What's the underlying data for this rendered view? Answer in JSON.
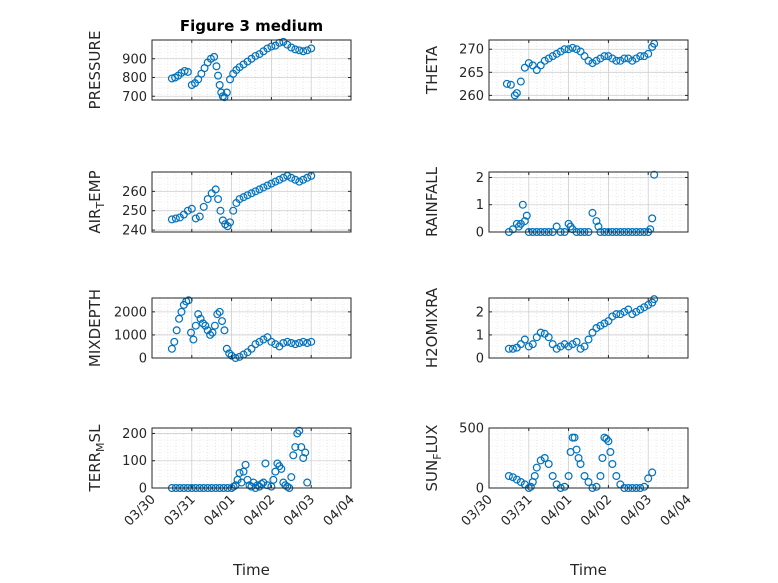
{
  "chart_data": [
    {
      "type": "scatter",
      "title": "Figure 3 medium",
      "ylabel": "PRESSURE",
      "ylim": [
        680,
        1000
      ],
      "yticks": [
        700,
        800,
        900
      ],
      "xlim": [
        0,
        5
      ],
      "marker_color": "#0072BD",
      "x": [
        0.5,
        0.58,
        0.66,
        0.74,
        0.82,
        0.9,
        1.0,
        1.08,
        1.16,
        1.24,
        1.32,
        1.4,
        1.48,
        1.56,
        1.62,
        1.66,
        1.7,
        1.74,
        1.78,
        1.82,
        1.88,
        1.96,
        2.04,
        2.12,
        2.2,
        2.3,
        2.4,
        2.5,
        2.6,
        2.7,
        2.8,
        2.9,
        3.0,
        3.1,
        3.2,
        3.3,
        3.4,
        3.5,
        3.6,
        3.7,
        3.8,
        3.9,
        4.0
      ],
      "y": [
        795,
        800,
        810,
        825,
        835,
        830,
        760,
        770,
        790,
        820,
        850,
        880,
        900,
        910,
        860,
        810,
        760,
        720,
        700,
        695,
        720,
        790,
        820,
        840,
        855,
        870,
        885,
        900,
        915,
        925,
        940,
        955,
        965,
        970,
        985,
        990,
        975,
        960,
        950,
        945,
        940,
        945,
        955
      ]
    },
    {
      "type": "scatter",
      "title": "",
      "ylabel": "THETA",
      "ylim": [
        259,
        272
      ],
      "yticks": [
        260,
        265,
        270
      ],
      "xlim": [
        0,
        5
      ],
      "marker_color": "#0072BD",
      "x": [
        0.45,
        0.55,
        0.65,
        0.7,
        0.8,
        0.9,
        1.0,
        1.1,
        1.2,
        1.3,
        1.4,
        1.5,
        1.6,
        1.7,
        1.8,
        1.9,
        2.0,
        2.1,
        2.2,
        2.3,
        2.4,
        2.5,
        2.6,
        2.7,
        2.8,
        2.9,
        3.0,
        3.1,
        3.2,
        3.3,
        3.4,
        3.5,
        3.6,
        3.7,
        3.8,
        3.9,
        4.0,
        4.1,
        4.15
      ],
      "y": [
        262.5,
        262.3,
        260.0,
        260.5,
        263.0,
        266.0,
        267.0,
        266.5,
        265.5,
        266.5,
        267.5,
        268.0,
        268.5,
        269.0,
        269.5,
        270.0,
        270.0,
        270.3,
        270.0,
        269.5,
        268.5,
        267.5,
        267.0,
        267.5,
        268.0,
        268.5,
        268.5,
        268.0,
        267.5,
        267.5,
        268.0,
        268.0,
        267.5,
        268.0,
        268.5,
        268.5,
        269.0,
        270.5,
        271.2
      ]
    },
    {
      "type": "scatter",
      "title": "",
      "ylabel": "AIR_T EMP",
      "ylim": [
        239,
        270
      ],
      "yticks": [
        240,
        250,
        260
      ],
      "xlim": [
        0,
        5
      ],
      "marker_color": "#0072BD",
      "x": [
        0.5,
        0.6,
        0.7,
        0.8,
        0.9,
        1.0,
        1.1,
        1.2,
        1.3,
        1.4,
        1.5,
        1.6,
        1.66,
        1.72,
        1.78,
        1.84,
        1.9,
        1.96,
        2.04,
        2.12,
        2.2,
        2.3,
        2.4,
        2.5,
        2.6,
        2.7,
        2.8,
        2.9,
        3.0,
        3.1,
        3.2,
        3.3,
        3.4,
        3.5,
        3.6,
        3.7,
        3.8,
        3.9,
        4.0
      ],
      "y": [
        245.5,
        246,
        246.5,
        248,
        250,
        251,
        246,
        247,
        252,
        256,
        259,
        261,
        256,
        250,
        245,
        243,
        242,
        244,
        250,
        254,
        256,
        257,
        258,
        259,
        260,
        261,
        262,
        263,
        264,
        265,
        266,
        267,
        268,
        267,
        266,
        265,
        266,
        267,
        268
      ]
    },
    {
      "type": "scatter",
      "title": "",
      "ylabel": "RAINFALL",
      "ylim": [
        0,
        2.2
      ],
      "yticks": [
        0,
        1,
        2
      ],
      "xlim": [
        0,
        5
      ],
      "marker_color": "#0072BD",
      "x": [
        0.5,
        0.6,
        0.7,
        0.75,
        0.8,
        0.85,
        0.9,
        0.95,
        1.0,
        1.1,
        1.2,
        1.3,
        1.4,
        1.5,
        1.6,
        1.7,
        1.8,
        1.9,
        2.0,
        2.05,
        2.1,
        2.2,
        2.3,
        2.4,
        2.5,
        2.6,
        2.7,
        2.75,
        2.8,
        2.9,
        3.0,
        3.1,
        3.2,
        3.3,
        3.4,
        3.5,
        3.6,
        3.7,
        3.8,
        3.9,
        4.0,
        4.05,
        4.1,
        4.15
      ],
      "y": [
        0,
        0.1,
        0.3,
        0.2,
        0.3,
        1.0,
        0.4,
        0.6,
        0,
        0,
        0,
        0,
        0,
        0,
        0,
        0.2,
        0,
        0,
        0.3,
        0.2,
        0.1,
        0,
        0,
        0,
        0,
        0.7,
        0.4,
        0.2,
        0,
        0,
        0,
        0,
        0,
        0,
        0,
        0,
        0,
        0,
        0,
        0,
        0,
        0.1,
        0.5,
        2.1
      ]
    },
    {
      "type": "scatter",
      "title": "",
      "ylabel": "MIXDEPTH",
      "ylim": [
        0,
        2600
      ],
      "yticks": [
        0,
        1000,
        2000
      ],
      "xlim": [
        0,
        5
      ],
      "marker_color": "#0072BD",
      "x": [
        0.5,
        0.56,
        0.62,
        0.68,
        0.74,
        0.8,
        0.86,
        0.92,
        0.98,
        1.04,
        1.1,
        1.16,
        1.22,
        1.28,
        1.34,
        1.4,
        1.46,
        1.52,
        1.58,
        1.64,
        1.7,
        1.76,
        1.82,
        1.88,
        1.94,
        2.0,
        2.1,
        2.2,
        2.3,
        2.4,
        2.5,
        2.6,
        2.7,
        2.8,
        2.9,
        3.0,
        3.1,
        3.2,
        3.3,
        3.4,
        3.5,
        3.6,
        3.7,
        3.8,
        3.9,
        4.0
      ],
      "y": [
        400,
        700,
        1200,
        1700,
        2000,
        2300,
        2450,
        2500,
        1100,
        800,
        1400,
        1900,
        1700,
        1500,
        1400,
        1200,
        1000,
        1100,
        1400,
        1900,
        2000,
        1600,
        1200,
        400,
        200,
        100,
        0,
        50,
        150,
        250,
        400,
        600,
        700,
        800,
        900,
        700,
        600,
        500,
        650,
        700,
        650,
        600,
        650,
        700,
        650,
        700
      ]
    },
    {
      "type": "scatter",
      "title": "",
      "ylabel": "H2OMIXRA",
      "ylim": [
        0,
        2.6
      ],
      "yticks": [
        0,
        1,
        2
      ],
      "xlim": [
        0,
        5
      ],
      "marker_color": "#0072BD",
      "x": [
        0.5,
        0.6,
        0.7,
        0.8,
        0.9,
        1.0,
        1.1,
        1.2,
        1.3,
        1.4,
        1.5,
        1.6,
        1.7,
        1.8,
        1.9,
        2.0,
        2.1,
        2.2,
        2.3,
        2.4,
        2.5,
        2.6,
        2.7,
        2.8,
        2.9,
        3.0,
        3.1,
        3.2,
        3.3,
        3.4,
        3.5,
        3.6,
        3.7,
        3.8,
        3.9,
        4.0,
        4.1,
        4.15
      ],
      "y": [
        0.4,
        0.4,
        0.45,
        0.6,
        0.8,
        0.5,
        0.6,
        0.9,
        1.1,
        1.05,
        0.9,
        0.6,
        0.4,
        0.5,
        0.6,
        0.5,
        0.6,
        0.7,
        0.4,
        0.5,
        0.8,
        1.1,
        1.3,
        1.4,
        1.5,
        1.6,
        1.8,
        1.9,
        1.9,
        2.0,
        2.1,
        1.9,
        2.0,
        2.1,
        2.2,
        2.3,
        2.4,
        2.55
      ]
    },
    {
      "type": "scatter",
      "title": "",
      "ylabel": "TERR_M SL",
      "ylim": [
        0,
        220
      ],
      "yticks": [
        0,
        100,
        200
      ],
      "xlim": [
        0,
        5
      ],
      "marker_color": "#0072BD",
      "x": [
        0.5,
        0.6,
        0.7,
        0.8,
        0.9,
        1.0,
        1.1,
        1.2,
        1.3,
        1.4,
        1.5,
        1.6,
        1.7,
        1.8,
        1.9,
        2.0,
        2.05,
        2.1,
        2.15,
        2.2,
        2.25,
        2.3,
        2.35,
        2.4,
        2.45,
        2.5,
        2.55,
        2.6,
        2.65,
        2.7,
        2.75,
        2.8,
        2.85,
        2.9,
        3.0,
        3.05,
        3.1,
        3.15,
        3.2,
        3.25,
        3.3,
        3.35,
        3.4,
        3.45,
        3.5,
        3.55,
        3.6,
        3.65,
        3.7,
        3.75,
        3.8,
        3.85,
        3.9
      ],
      "y": [
        0,
        0,
        0,
        0,
        0,
        0,
        0,
        0,
        0,
        0,
        0,
        0,
        0,
        0,
        0,
        0,
        5,
        10,
        30,
        55,
        20,
        60,
        85,
        30,
        10,
        5,
        20,
        0,
        10,
        5,
        15,
        20,
        90,
        10,
        5,
        30,
        60,
        90,
        80,
        70,
        20,
        10,
        5,
        0,
        40,
        120,
        150,
        200,
        210,
        150,
        110,
        130,
        20
      ]
    },
    {
      "type": "scatter",
      "title": "",
      "ylabel": "SUN_F LUX",
      "ylim": [
        0,
        500
      ],
      "yticks": [
        0,
        500
      ],
      "xlim": [
        0,
        5
      ],
      "marker_color": "#0072BD",
      "x": [
        0.5,
        0.6,
        0.7,
        0.8,
        0.9,
        1.0,
        1.05,
        1.1,
        1.15,
        1.2,
        1.3,
        1.4,
        1.5,
        1.6,
        1.7,
        1.8,
        1.9,
        2.0,
        2.05,
        2.1,
        2.15,
        2.2,
        2.25,
        2.3,
        2.4,
        2.5,
        2.6,
        2.7,
        2.8,
        2.85,
        2.9,
        2.95,
        3.0,
        3.05,
        3.1,
        3.2,
        3.3,
        3.4,
        3.5,
        3.6,
        3.7,
        3.8,
        3.9,
        4.0,
        4.1
      ],
      "y": [
        100,
        90,
        70,
        50,
        30,
        0,
        10,
        50,
        100,
        170,
        230,
        250,
        200,
        100,
        30,
        0,
        10,
        100,
        300,
        420,
        420,
        320,
        250,
        200,
        100,
        50,
        0,
        10,
        100,
        250,
        420,
        410,
        390,
        300,
        200,
        100,
        30,
        0,
        0,
        0,
        0,
        0,
        10,
        80,
        130
      ]
    }
  ],
  "x_axis": {
    "ticks": [
      "03/30",
      "03/31",
      "04/01",
      "04/02",
      "04/03",
      "04/04"
    ],
    "label": "Time"
  }
}
